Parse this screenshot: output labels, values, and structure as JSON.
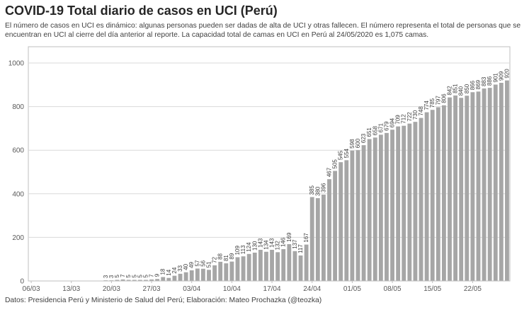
{
  "chart_data": {
    "type": "bar",
    "title": "COVID-19 Total diario de casos en UCI (Perú)",
    "subtitle": "El número de casos en UCI es dinámico: algunas personas pueden ser dadas de alta de UCI y otras fallecen. El número representa el total de personas que se encuentran en UCI al cierre del día anterior al reporte. La capacidad total de camas en UCI en Perú al 24/05/2020 es 1,075 camas.",
    "footer": "Datos: Presidencia Perú y Ministerio de Salud del Perú; Elaboración: Mateo Prochazka (@teozka)",
    "xlabel": "",
    "ylabel": "",
    "ylim": [
      0,
      1000
    ],
    "yticks": [
      "0",
      "200",
      "400",
      "600",
      "800",
      "1000"
    ],
    "xtick_labels": [
      {
        "index": 0,
        "label": "06/03"
      },
      {
        "index": 7,
        "label": "13/03"
      },
      {
        "index": 14,
        "label": "20/03"
      },
      {
        "index": 21,
        "label": "27/03"
      },
      {
        "index": 28,
        "label": "03/04"
      },
      {
        "index": 35,
        "label": "10/04"
      },
      {
        "index": 42,
        "label": "17/04"
      },
      {
        "index": 49,
        "label": "24/04"
      },
      {
        "index": 56,
        "label": "01/05"
      },
      {
        "index": 63,
        "label": "08/05"
      },
      {
        "index": 70,
        "label": "15/05"
      },
      {
        "index": 77,
        "label": "22/05"
      }
    ],
    "bar_color": "#a6a6a6",
    "values": [
      0,
      0,
      0,
      0,
      0,
      0,
      0,
      0,
      0,
      0,
      0,
      0,
      0,
      3,
      3,
      5,
      7,
      5,
      5,
      5,
      5,
      7,
      9,
      18,
      14,
      24,
      33,
      40,
      49,
      57,
      56,
      51,
      72,
      88,
      81,
      89,
      109,
      113,
      124,
      130,
      143,
      134,
      143,
      132,
      146,
      169,
      137,
      117,
      167,
      385,
      380,
      396,
      467,
      505,
      545,
      554,
      598,
      600,
      623,
      651,
      658,
      671,
      679,
      694,
      709,
      712,
      722,
      730,
      748,
      774,
      785,
      797,
      806,
      842,
      851,
      840,
      850,
      866,
      869,
      883,
      886,
      901,
      909,
      920
    ],
    "labels": [
      "",
      "",
      "",
      "",
      "",
      "",
      "",
      "",
      "",
      "",
      "",
      "",
      "",
      "3",
      "3",
      "5",
      "7",
      "5",
      "5",
      "5",
      "5",
      "7",
      "9",
      "18",
      "14",
      "24",
      "33",
      "40",
      "49",
      "57",
      "56",
      "51",
      "72",
      "88",
      "81",
      "89",
      "109",
      "113",
      "124",
      "130",
      "143",
      "134",
      "143",
      "132",
      "146",
      "169",
      "137",
      "117",
      "167",
      "385",
      "380",
      "396",
      "467",
      "505",
      "545",
      "554",
      "598",
      "600",
      "623",
      "651",
      "658",
      "671",
      "679",
      "694",
      "709",
      "712",
      "722",
      "730",
      "748",
      "774",
      "785",
      "797",
      "806",
      "842",
      "851",
      "840",
      "850",
      "866",
      "869",
      "883",
      "886",
      "901",
      "909",
      "920"
    ]
  }
}
